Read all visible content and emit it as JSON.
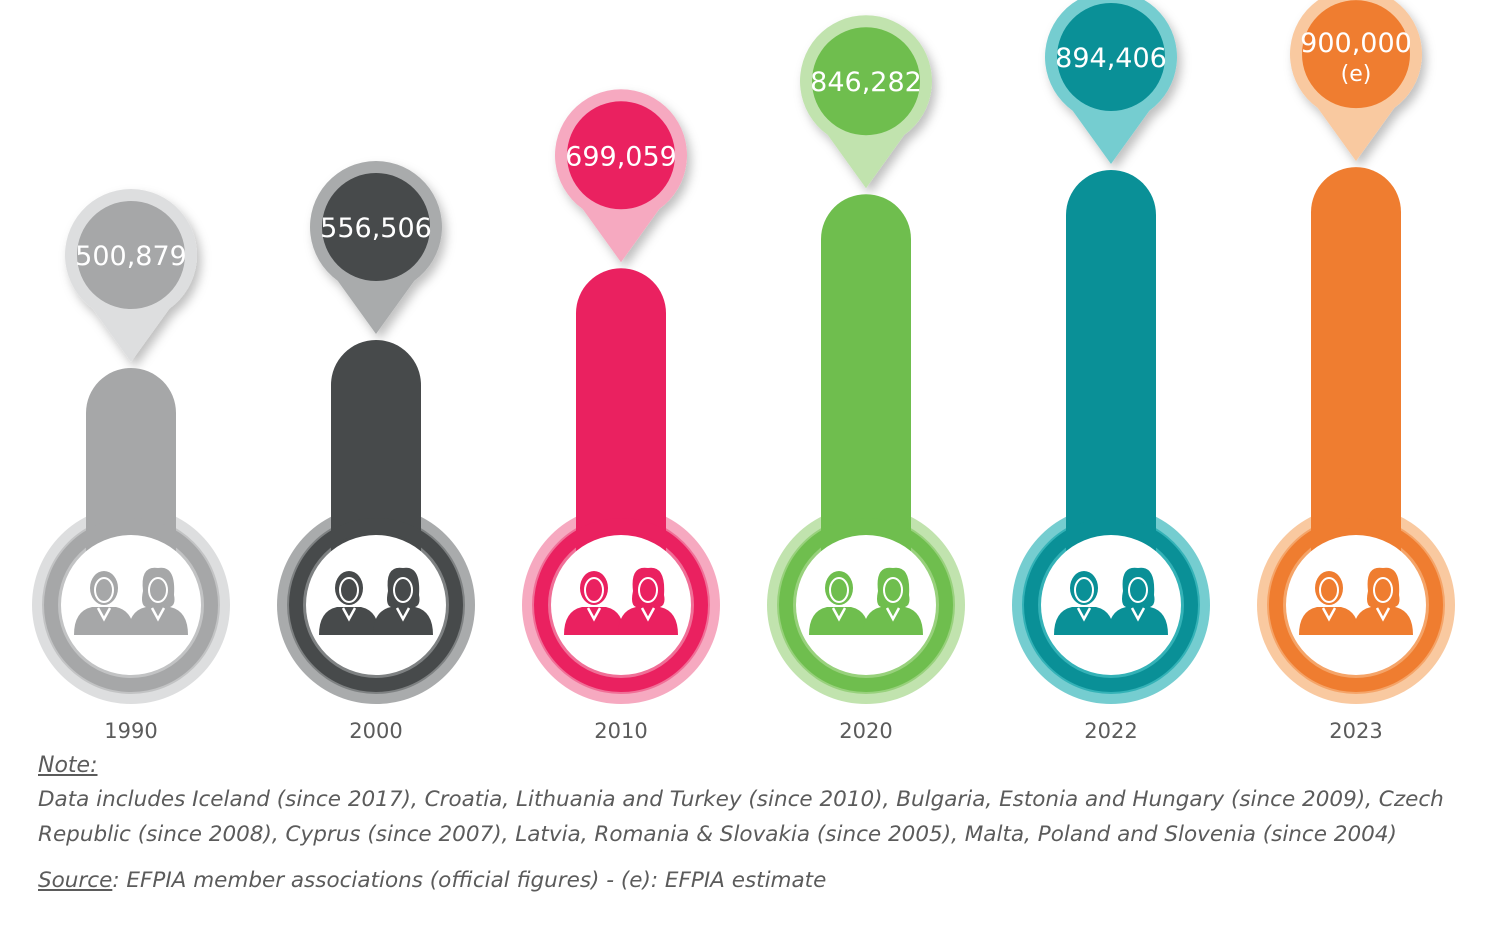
{
  "chart_data": {
    "type": "bar",
    "categories": [
      "1990",
      "2000",
      "2010",
      "2020",
      "2022",
      "2023"
    ],
    "values": [
      500879,
      556506,
      699059,
      846282,
      894406,
      900000
    ],
    "value_labels": [
      "500,879",
      "556,506",
      "699,059",
      "846,282",
      "894,406",
      "900,000"
    ],
    "value_sublabels": [
      "",
      "",
      "",
      "",
      "",
      "(e)"
    ],
    "title": "",
    "xlabel": "",
    "ylabel": "",
    "ylim": [
      0,
      900000
    ],
    "grid": false,
    "legend": "none",
    "icon": "people-icon",
    "colors": [
      {
        "main": "#a6a7a8",
        "mid": "#c2c3c4",
        "light": "#dddedf"
      },
      {
        "main": "#474a4b",
        "mid": "#7e8182",
        "light": "#a9abac"
      },
      {
        "main": "#ea2160",
        "mid": "#f06f97",
        "light": "#f6a9c0"
      },
      {
        "main": "#6fbe4e",
        "mid": "#98d17c",
        "light": "#c1e3ae"
      },
      {
        "main": "#0a9097",
        "mid": "#34b2b7",
        "light": "#75cdd0"
      },
      {
        "main": "#ef7d30",
        "mid": "#f5a468",
        "light": "#f9c9a0"
      }
    ]
  },
  "notes": {
    "note_label": "Note:",
    "note_text": "Data includes Iceland (since 2017), Croatia, Lithuania and Turkey (since 2010), Bulgaria, Estonia and Hungary (since 2009), Czech Republic (since 2008), Cyprus (since 2007), Latvia, Romania & Slovakia (since 2005), Malta, Poland and Slovenia (since 2004)",
    "source_label": "Source",
    "source_text": ": EFPIA member associations (official figures) - (e): EFPIA estimate"
  }
}
